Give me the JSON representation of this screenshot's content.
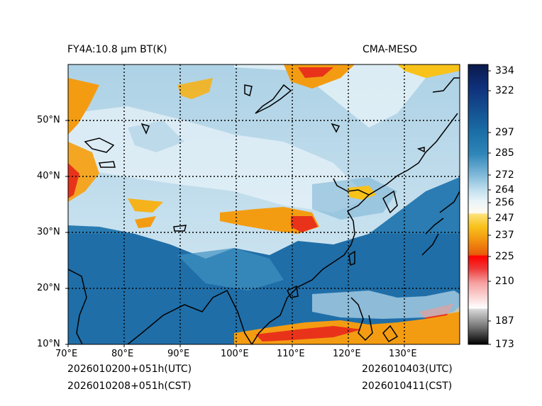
{
  "header": {
    "title_left": "FY4A:10.8 µm BT(K)",
    "title_right": "CMA-MESO"
  },
  "footer": {
    "init_utc": "2026010200+051h(UTC)",
    "init_cst": "2026010208+051h(CST)",
    "valid_utc": "2026010403(UTC)",
    "valid_cst": "2026010411(CST)"
  },
  "map": {
    "lon_range": [
      70,
      140
    ],
    "lat_range": [
      10,
      60
    ],
    "lon_ticks": [
      {
        "value": 70,
        "label": "70°E"
      },
      {
        "value": 80,
        "label": "80°E"
      },
      {
        "value": 90,
        "label": "90°E"
      },
      {
        "value": 100,
        "label": "100°E"
      },
      {
        "value": 110,
        "label": "110°E"
      },
      {
        "value": 120,
        "label": "120°E"
      },
      {
        "value": 130,
        "label": "130°E"
      }
    ],
    "lat_ticks": [
      {
        "value": 10,
        "label": "10°N"
      },
      {
        "value": 20,
        "label": "20°N"
      },
      {
        "value": 30,
        "label": "30°N"
      },
      {
        "value": 40,
        "label": "40°N"
      },
      {
        "value": 50,
        "label": "50°N"
      }
    ],
    "gridlines": "dotted",
    "colors": {
      "warm_surface": "#2f82b4",
      "ocean_warm": "#1f6ea8",
      "cold_cloud": "#cfe6f2",
      "very_cold_cloud": "#f7b500",
      "coldest_cloud": "#e8331a",
      "coastline": "#000000"
    }
  },
  "colorbar": {
    "ticks": [
      {
        "value": 334,
        "label": "334"
      },
      {
        "value": 322,
        "label": "322"
      },
      {
        "value": 297,
        "label": "297"
      },
      {
        "value": 285,
        "label": "285"
      },
      {
        "value": 272,
        "label": "272"
      },
      {
        "value": 264,
        "label": "264"
      },
      {
        "value": 256,
        "label": "256"
      },
      {
        "value": 247,
        "label": "247"
      },
      {
        "value": 237,
        "label": "237"
      },
      {
        "value": 225,
        "label": "225"
      },
      {
        "value": 210,
        "label": "210"
      },
      {
        "value": 187,
        "label": "187"
      },
      {
        "value": 173,
        "label": "173"
      }
    ],
    "colors": {
      "334": "#0a1a4a",
      "322": "#0f2f7a",
      "297": "#1a6ea6",
      "285": "#2f86b8",
      "272": "#86bddb",
      "264": "#c3e0ee",
      "256": "#eaf4f9",
      "247": "#f8c21a",
      "237": "#f39c12",
      "225": "#e81010",
      "210": "#f6a0a0",
      "187": "#e8e8e8",
      "173": "#000000"
    }
  }
}
